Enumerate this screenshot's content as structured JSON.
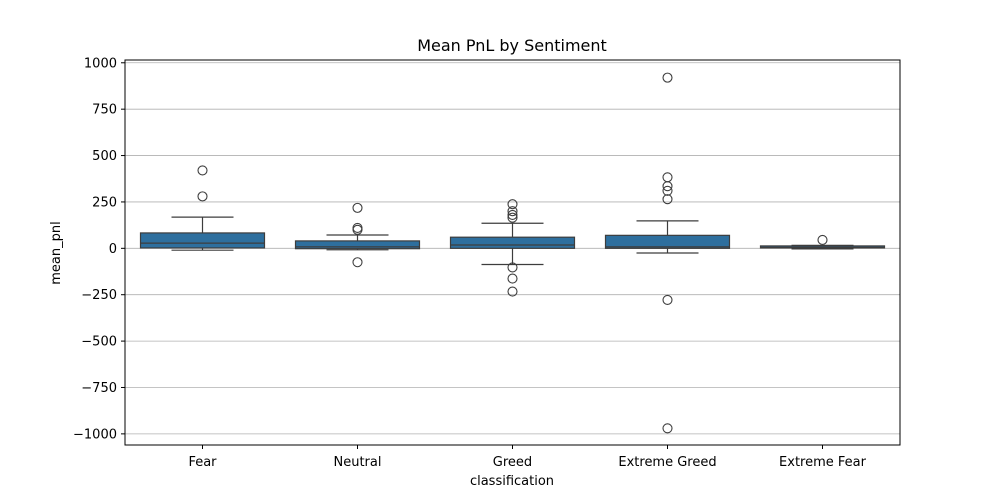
{
  "chart_data": {
    "type": "box",
    "title": "Mean PnL by Sentiment",
    "xlabel": "classification",
    "ylabel": "mean_pnl",
    "ylim": [
      -1060,
      1015
    ],
    "yticks": [
      -1000,
      -750,
      -500,
      -250,
      0,
      250,
      500,
      750,
      1000
    ],
    "ytick_labels": [
      "−1000",
      "−750",
      "−500",
      "−250",
      "0",
      "250",
      "500",
      "750",
      "1000"
    ],
    "grid": "y",
    "box_color": "#2e6f9e",
    "categories": [
      "Fear",
      "Neutral",
      "Greed",
      "Extreme Greed",
      "Extreme Fear"
    ],
    "boxes": [
      {
        "category": "Fear",
        "q1": 2,
        "median": 28,
        "q3": 83,
        "whisker_low": -10,
        "whisker_high": 168,
        "outliers": [
          420,
          280
        ]
      },
      {
        "category": "Neutral",
        "q1": -2,
        "median": 8,
        "q3": 40,
        "whisker_low": -8,
        "whisker_high": 72,
        "outliers": [
          218,
          110,
          100,
          -75
        ]
      },
      {
        "category": "Greed",
        "q1": 0,
        "median": 18,
        "q3": 60,
        "whisker_low": -87,
        "whisker_high": 135,
        "outliers": [
          238,
          200,
          180,
          165,
          -103,
          -163,
          -233
        ]
      },
      {
        "category": "Extreme Greed",
        "q1": 0,
        "median": 8,
        "q3": 70,
        "whisker_low": -25,
        "whisker_high": 148,
        "outliers": [
          920,
          383,
          335,
          310,
          265,
          -278,
          -970
        ]
      },
      {
        "category": "Extreme Fear",
        "q1": 2,
        "median": 5,
        "q3": 13,
        "whisker_low": -3,
        "whisker_high": 16,
        "outliers": [
          45
        ]
      }
    ]
  }
}
